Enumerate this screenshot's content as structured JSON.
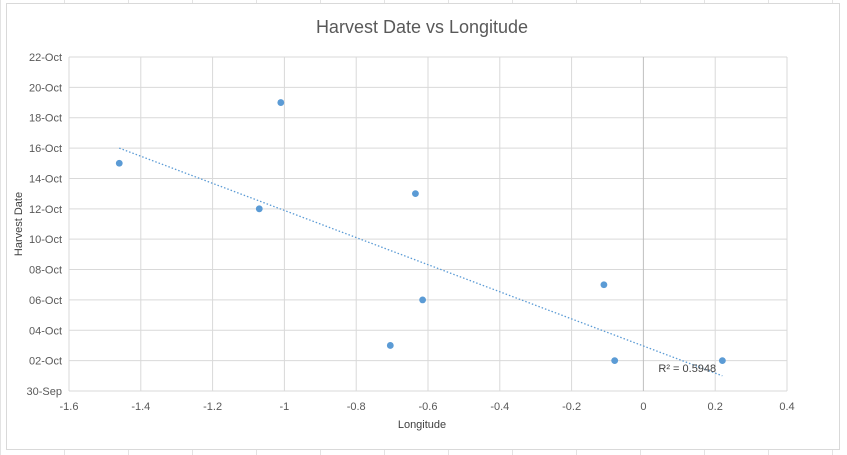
{
  "chart_data": {
    "type": "scatter",
    "title": "Harvest Date vs Longitude",
    "xlabel": "Longitude",
    "ylabel": "Harvest Date",
    "xlim": [
      -1.6,
      0.4
    ],
    "x_ticks": [
      -1.6,
      -1.4,
      -1.2,
      -1,
      -0.8,
      -0.6,
      -0.4,
      -0.2,
      0,
      0.2,
      0.4
    ],
    "x_tick_labels": [
      "-1.6",
      "-1.4",
      "-1.2",
      "-1",
      "-0.8",
      "-0.6",
      "-0.4",
      "-0.2",
      "0",
      "0.2",
      "0.4"
    ],
    "ylim": [
      "30-Sep",
      "22-Oct"
    ],
    "y_tick_labels": [
      "30-Sep",
      "02-Oct",
      "04-Oct",
      "06-Oct",
      "08-Oct",
      "10-Oct",
      "12-Oct",
      "14-Oct",
      "16-Oct",
      "18-Oct",
      "20-Oct",
      "22-Oct"
    ],
    "grid": true,
    "series": [
      {
        "points": [
          {
            "x": -1.46,
            "y": "15-Oct"
          },
          {
            "x": -1.01,
            "y": "19-Oct"
          },
          {
            "x": -1.07,
            "y": "12-Oct"
          },
          {
            "x": -0.635,
            "y": "13-Oct"
          },
          {
            "x": -0.615,
            "y": "06-Oct"
          },
          {
            "x": -0.705,
            "y": "03-Oct"
          },
          {
            "x": -0.11,
            "y": "07-Oct"
          },
          {
            "x": -0.08,
            "y": "02-Oct"
          },
          {
            "x": 0.22,
            "y": "02-Oct"
          }
        ],
        "color": "#5b9bd5"
      }
    ],
    "trendline": {
      "type": "linear",
      "x_range": [
        -1.46,
        0.22
      ],
      "y_range": [
        "16-Oct",
        "01-Oct"
      ],
      "r_squared_label": "R² = 0.5948",
      "color": "#5b9bd5"
    }
  }
}
